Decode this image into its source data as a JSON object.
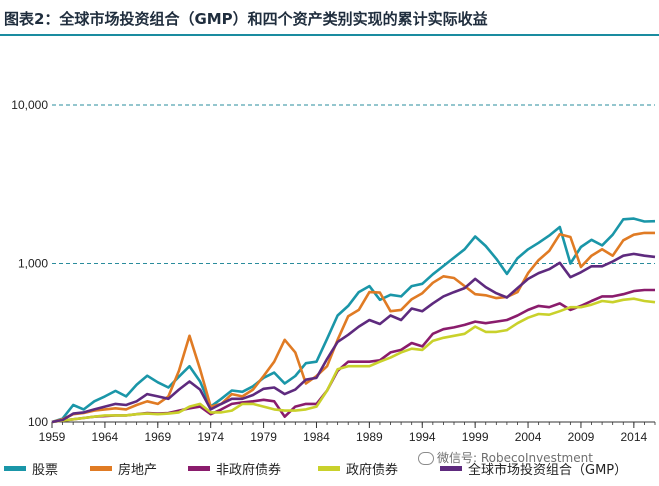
{
  "chart_data": {
    "type": "line",
    "title": "图表2：全球市场投资组合（GMP）和四个资产类别实现的累计实际收益",
    "yscale": "log",
    "ylim": [
      100,
      10000
    ],
    "yticks": [
      "100",
      "1,000",
      "10,000"
    ],
    "ytick_values": [
      100,
      1000,
      10000
    ],
    "xlim": [
      1959,
      2016
    ],
    "xticks": [
      "1959",
      "1964",
      "1969",
      "1974",
      "1979",
      "1984",
      "1989",
      "1994",
      "1999",
      "2004",
      "2009",
      "2014"
    ],
    "xtick_values": [
      1959,
      1964,
      1969,
      1974,
      1979,
      1984,
      1989,
      1994,
      1999,
      2004,
      2009,
      2014
    ],
    "grid": "horizontal dashed at 1,000 and 10,000",
    "legend_position": "bottom",
    "x": [
      1959,
      1960,
      1961,
      1962,
      1963,
      1964,
      1965,
      1966,
      1967,
      1968,
      1969,
      1970,
      1971,
      1972,
      1973,
      1974,
      1975,
      1976,
      1977,
      1978,
      1979,
      1980,
      1981,
      1982,
      1983,
      1984,
      1985,
      1986,
      1987,
      1988,
      1989,
      1990,
      1991,
      1992,
      1993,
      1994,
      1995,
      1996,
      1997,
      1998,
      1999,
      2000,
      2001,
      2002,
      2003,
      2004,
      2005,
      2006,
      2007,
      2008,
      2009,
      2010,
      2011,
      2012,
      2013,
      2014,
      2015,
      2016
    ],
    "series": [
      {
        "name": "股票",
        "color": "#1a96a8",
        "values": [
          100,
          105,
          128,
          120,
          135,
          145,
          157,
          145,
          172,
          196,
          178,
          165,
          193,
          225,
          180,
          125,
          140,
          158,
          155,
          168,
          190,
          205,
          175,
          195,
          235,
          240,
          335,
          470,
          540,
          660,
          720,
          590,
          635,
          620,
          720,
          745,
          855,
          965,
          1090,
          1230,
          1480,
          1290,
          1070,
          860,
          1080,
          1230,
          1350,
          1500,
          1700,
          1000,
          1270,
          1410,
          1300,
          1520,
          1900,
          1920,
          1840,
          1850
        ],
        "_axis_": "log"
      },
      {
        "name": "房地产",
        "color": "#e07b24",
        "values": [
          100,
          104,
          112,
          114,
          118,
          120,
          122,
          120,
          128,
          135,
          130,
          145,
          210,
          350,
          215,
          125,
          130,
          150,
          145,
          160,
          195,
          240,
          330,
          275,
          175,
          195,
          225,
          330,
          465,
          510,
          660,
          655,
          500,
          510,
          595,
          650,
          755,
          830,
          810,
          720,
          640,
          630,
          605,
          615,
          660,
          870,
          1050,
          1200,
          1530,
          1470,
          950,
          1120,
          1230,
          1120,
          1400,
          1520,
          1560,
          1560
        ]
      },
      {
        "name": "非政府债券",
        "color": "#8a1c6c",
        "values": [
          100,
          102,
          104,
          106,
          108,
          109,
          110,
          110,
          112,
          114,
          113,
          114,
          118,
          122,
          125,
          112,
          120,
          130,
          133,
          135,
          138,
          135,
          108,
          125,
          130,
          130,
          158,
          210,
          240,
          240,
          240,
          245,
          275,
          285,
          315,
          300,
          360,
          385,
          395,
          410,
          430,
          420,
          430,
          440,
          470,
          510,
          540,
          530,
          560,
          510,
          540,
          580,
          620,
          620,
          640,
          670,
          680,
          680
        ]
      },
      {
        "name": "政府债券",
        "color": "#c9d12b",
        "values": [
          100,
          102,
          104,
          106,
          108,
          110,
          110,
          110,
          112,
          113,
          112,
          113,
          115,
          125,
          130,
          115,
          115,
          118,
          130,
          130,
          125,
          120,
          118,
          118,
          120,
          125,
          158,
          215,
          225,
          225,
          225,
          240,
          255,
          275,
          290,
          285,
          325,
          340,
          350,
          360,
          400,
          370,
          370,
          380,
          420,
          455,
          480,
          475,
          500,
          530,
          530,
          550,
          580,
          570,
          590,
          600,
          580,
          570
        ]
      },
      {
        "name": "全球市场投资组合（GMP）",
        "color": "#5e2a7e",
        "values": [
          100,
          103,
          113,
          115,
          120,
          125,
          130,
          128,
          135,
          150,
          145,
          140,
          160,
          180,
          160,
          120,
          130,
          140,
          140,
          148,
          162,
          165,
          150,
          160,
          185,
          190,
          250,
          320,
          355,
          400,
          440,
          415,
          470,
          440,
          520,
          500,
          560,
          620,
          660,
          700,
          800,
          710,
          650,
          610,
          700,
          800,
          870,
          920,
          1010,
          820,
          880,
          960,
          960,
          1030,
          1120,
          1150,
          1120,
          1100
        ]
      }
    ]
  },
  "watermark": "微信号: RobecoInvestment"
}
